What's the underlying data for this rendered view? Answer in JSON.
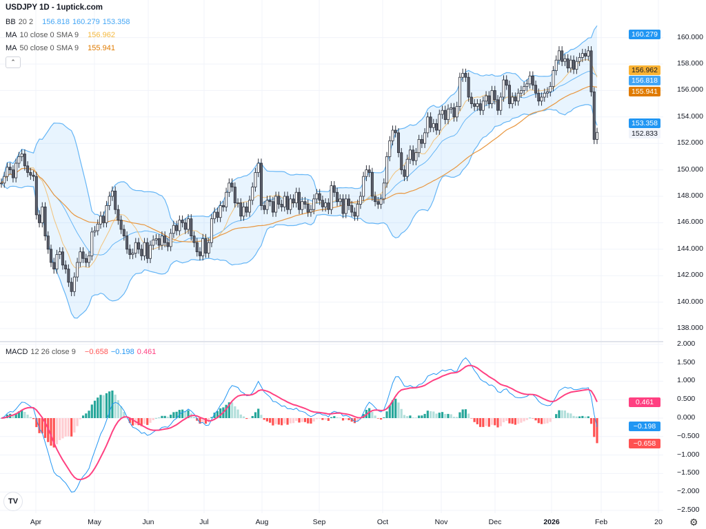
{
  "header": {
    "title": "USDJPY 1D - 1uptick.com"
  },
  "legend": {
    "bb": {
      "label": "BB",
      "params": "20 2",
      "basis": "156.818",
      "upper": "160.279",
      "lower": "153.358"
    },
    "ma10": {
      "label": "MA",
      "params": "10 close 0 SMA 9",
      "value": "156.962"
    },
    "ma50": {
      "label": "MA",
      "params": "50 close 0 SMA 9",
      "value": "155.941"
    },
    "macd": {
      "label": "MACD",
      "params": "12 26 close 9",
      "histogram": "−0.658",
      "macd": "−0.198",
      "signal": "0.461"
    },
    "collapse_icon": "chevron-up-icon"
  },
  "price_axis": {
    "ticks": [
      "160.000",
      "158.000",
      "156.000",
      "154.000",
      "152.000",
      "150.000",
      "148.000",
      "146.000",
      "144.000",
      "142.000",
      "140.000",
      "138.000"
    ],
    "tags": {
      "bb_upper": "160.279",
      "ma10": "156.962",
      "bb_basis": "156.818",
      "ma50": "155.941",
      "bb_lower": "153.358",
      "last": "152.833"
    }
  },
  "macd_axis": {
    "ticks": [
      "2.000",
      "1.500",
      "1.000",
      "0.500",
      "0.000",
      "−0.500",
      "−1.000",
      "−1.500",
      "−2.000",
      "−2.500"
    ],
    "tags": {
      "signal": "0.461",
      "macd": "−0.198",
      "histogram": "−0.658"
    }
  },
  "time_axis": {
    "ticks": [
      "Apr",
      "May",
      "Jun",
      "Jul",
      "Aug",
      "Sep",
      "Oct",
      "Nov",
      "Dec",
      "2026",
      "Feb",
      "20"
    ]
  },
  "colors": {
    "up": "#ffffff",
    "down": "#5d606b",
    "bb": "#64b5f6",
    "bb_fill": "rgba(33,150,243,0.10)",
    "ma10": "#f2c27a",
    "ma50": "#e8963e",
    "macd": "#2196f3",
    "signal": "#ff4081",
    "hist_up": "#26a69a",
    "hist_up_weak": "#b2dfdb",
    "hist_down": "#ff5252",
    "hist_down_weak": "#ffcdd2"
  },
  "chart_data": {
    "type": "candlestick",
    "title": "USDJPY 1D",
    "ylim": [
      137,
      161
    ],
    "macd_ylim": [
      -2.6,
      2.1
    ],
    "last_close": 152.833,
    "closes": [
      149.0,
      149.5,
      150.2,
      150.0,
      149.4,
      150.5,
      151.0,
      151.2,
      150.3,
      149.8,
      149.6,
      149.5,
      146.6,
      146.0,
      147.2,
      145.0,
      144.0,
      143.0,
      142.5,
      143.6,
      143.8,
      142.8,
      142.5,
      141.5,
      140.8,
      141.9,
      143.0,
      143.8,
      143.3,
      143.0,
      143.5,
      145.3,
      145.4,
      145.9,
      146.5,
      146.0,
      147.3,
      148.0,
      148.4,
      147.0,
      146.2,
      145.5,
      145.0,
      144.0,
      143.6,
      143.7,
      144.5,
      144.0,
      143.5,
      144.5,
      143.3,
      144.3,
      144.7,
      144.8,
      144.3,
      145.0,
      144.5,
      144.2,
      145.2,
      145.8,
      145.4,
      146.2,
      146.0,
      145.5,
      146.3,
      145.0,
      144.5,
      143.8,
      143.5,
      144.8,
      143.7,
      144.5,
      146.3,
      146.8,
      146.4,
      147.3,
      147.2,
      148.3,
      149.0,
      148.7,
      147.5,
      147.5,
      146.5,
      147.2,
      146.8,
      147.7,
      148.7,
      149.8,
      150.5,
      147.3,
      147.0,
      147.7,
      147.6,
      146.8,
      148.0,
      147.4,
      147.2,
      148.0,
      147.0,
      147.8,
      147.5,
      148.3,
      147.0,
      147.6,
      147.4,
      146.8,
      147.0,
      147.8,
      148.2,
      147.7,
      147.2,
      147.5,
      147.0,
      148.8,
      148.3,
      147.6,
      147.8,
      146.7,
      147.8,
      147.3,
      146.8,
      146.5,
      147.4,
      148.0,
      149.5,
      150.0,
      149.8,
      148.0,
      147.6,
      147.4,
      147.8,
      149.0,
      151.0,
      152.2,
      153.0,
      152.8,
      151.3,
      150.0,
      149.5,
      150.8,
      151.5,
      150.7,
      151.3,
      152.3,
      152.0,
      152.8,
      154.0,
      153.2,
      153.5,
      153.0,
      154.2,
      154.5,
      153.8,
      154.6,
      154.7,
      154.0,
      154.8,
      157.0,
      157.3,
      157.0,
      155.5,
      155.0,
      154.8,
      155.0,
      154.5,
      155.2,
      155.6,
      155.0,
      156.0,
      155.3,
      154.5,
      155.5,
      156.8,
      156.4,
      155.0,
      155.5,
      155.2,
      155.8,
      156.0,
      156.3,
      156.5,
      157.1,
      156.4,
      155.8,
      155.2,
      155.5,
      155.8,
      155.9,
      156.3,
      157.5,
      158.3,
      159.0,
      158.2,
      158.4,
      157.7,
      158.3,
      157.6,
      158.2,
      158.5,
      158.8,
      158.6,
      159.0,
      155.9,
      152.3,
      152.833
    ]
  }
}
